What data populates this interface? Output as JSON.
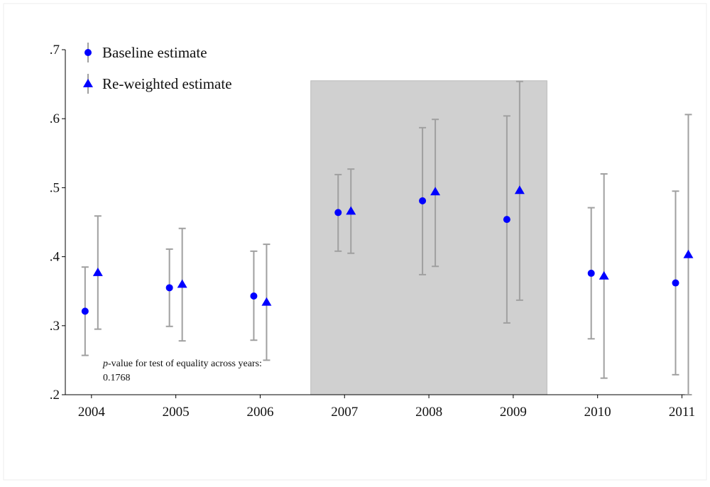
{
  "chart_data": {
    "type": "scatter",
    "x": [
      2004,
      2005,
      2006,
      2007,
      2008,
      2009,
      2010,
      2011
    ],
    "series": [
      {
        "name": "Baseline estimate",
        "color": "#0000ff",
        "marker": "circle",
        "values": [
          0.321,
          0.355,
          0.343,
          0.464,
          0.481,
          0.454,
          0.376,
          0.362
        ],
        "lower": [
          0.257,
          0.299,
          0.279,
          0.408,
          0.374,
          0.304,
          0.281,
          0.229
        ],
        "upper": [
          0.385,
          0.411,
          0.408,
          0.519,
          0.587,
          0.604,
          0.471,
          0.495
        ]
      },
      {
        "name": "Re-weighted estimate",
        "color": "#0000ff",
        "marker": "triangle",
        "values": [
          0.377,
          0.36,
          0.334,
          0.466,
          0.494,
          0.496,
          0.372,
          0.403
        ],
        "lower": [
          0.295,
          0.278,
          0.25,
          0.405,
          0.386,
          0.337,
          0.224,
          0.2
        ],
        "upper": [
          0.459,
          0.441,
          0.418,
          0.527,
          0.599,
          0.654,
          0.52,
          0.606
        ]
      }
    ],
    "error_bar_color": "#a0a0a0",
    "xlim": [
      2003.69,
      2011.08
    ],
    "xticks": [
      2004,
      2005,
      2006,
      2007,
      2008,
      2009,
      2010,
      2011
    ],
    "ylim": [
      0.2,
      0.7
    ],
    "yticks": [
      {
        "value": 0.2,
        "label": ".2"
      },
      {
        "value": 0.3,
        "label": ".3"
      },
      {
        "value": 0.4,
        "label": ".4"
      },
      {
        "value": 0.5,
        "label": ".5"
      },
      {
        "value": 0.6,
        "label": ".6"
      },
      {
        "value": 0.7,
        "label": ".7"
      }
    ],
    "shaded_region": {
      "x": [
        2006.6,
        2009.4
      ],
      "y": [
        0.2,
        0.655
      ],
      "color": "#d0d0d0"
    },
    "annotation": {
      "italic": "p",
      "text": "-value for test of equality across years:",
      "value": "0.1768"
    },
    "legend": "top-left"
  }
}
